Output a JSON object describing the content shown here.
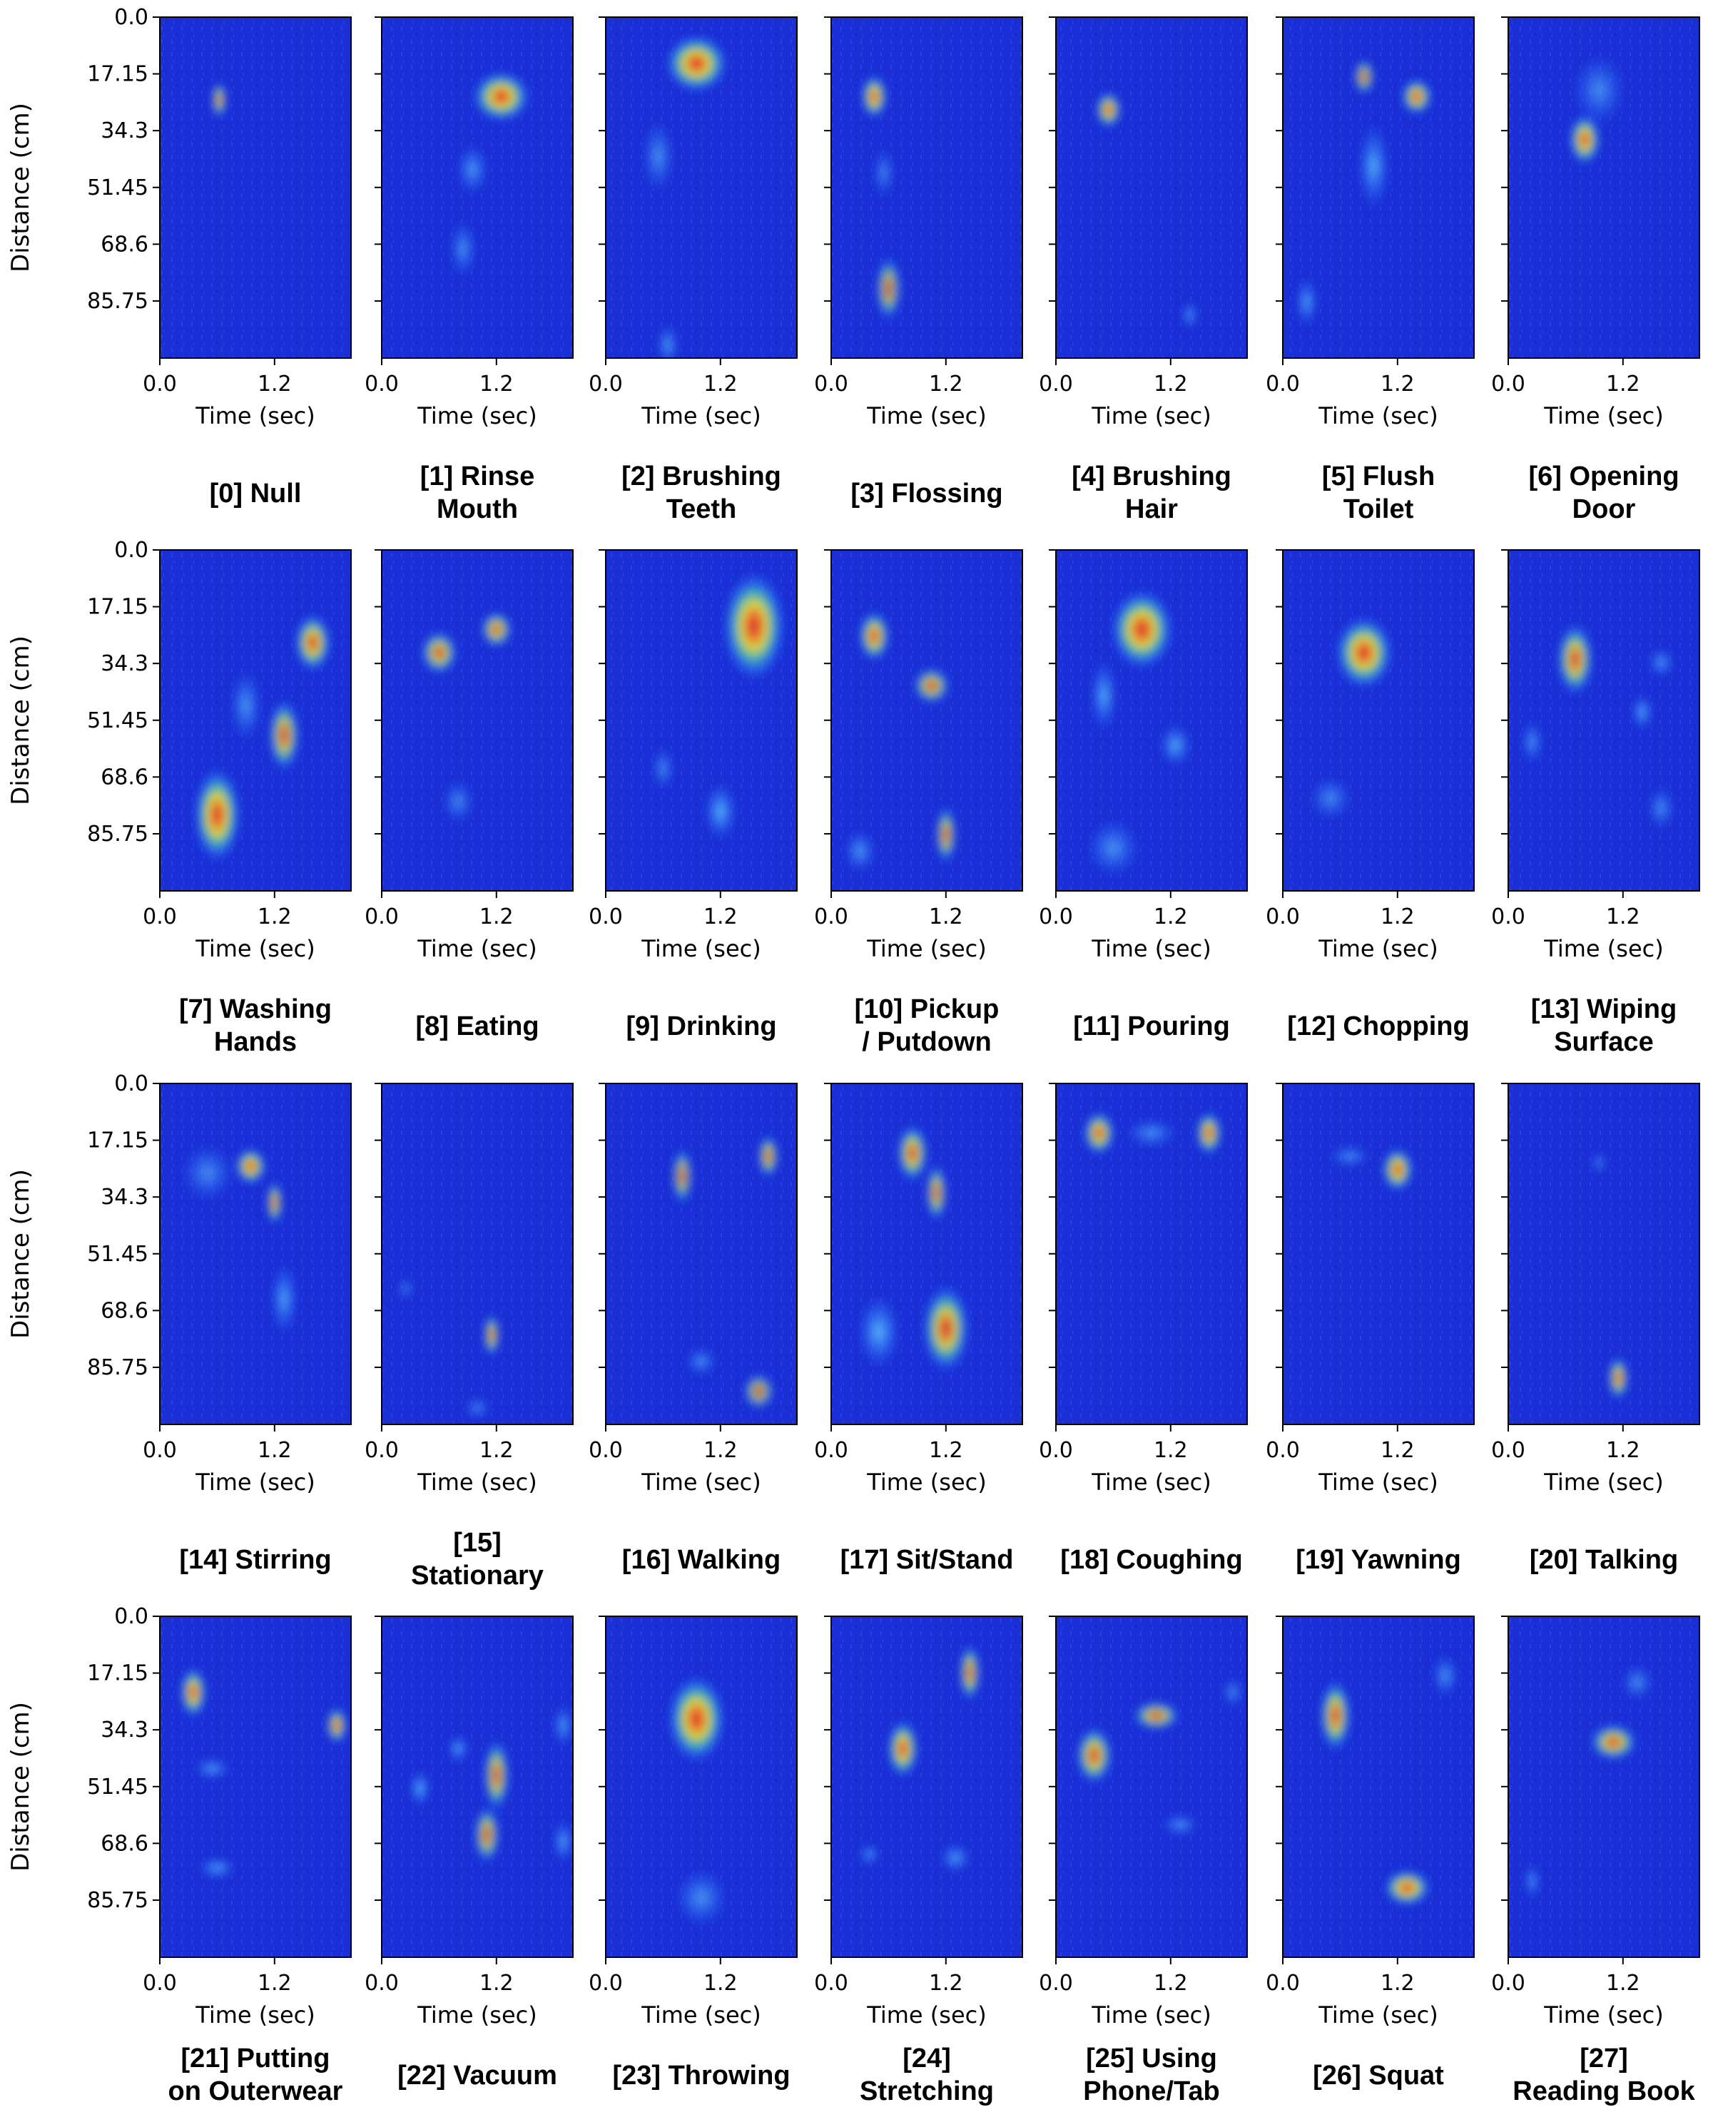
{
  "chart_data": {
    "type": "heatmap",
    "layout": "4 rows x 7 columns of small-multiple heatmaps",
    "colormap": "jet overlay (blue low, red high)",
    "ylabel": "Distance (cm)",
    "xlabel": "Time (sec)",
    "yticks": [
      "0.0",
      "17.15",
      "34.3",
      "51.45",
      "68.6",
      "85.75"
    ],
    "ytick_values": [
      0.0,
      17.15,
      34.3,
      51.45,
      68.6,
      85.75
    ],
    "xticks": [
      "0.0",
      "1.2"
    ],
    "xtick_values": [
      0.0,
      1.2
    ],
    "xlim": [
      0,
      2.0
    ],
    "ylim": [
      0,
      103
    ],
    "panels": [
      {
        "label": "[0] Null",
        "hotspots": [
          {
            "t": 0.62,
            "d": 25,
            "w": 0.12,
            "h": 5,
            "level": 0.95
          }
        ]
      },
      {
        "label": "[1] Rinse Mouth",
        "hotspots": [
          {
            "t": 1.25,
            "d": 24,
            "w": 0.55,
            "h": 7,
            "level": 1.0
          },
          {
            "t": 0.95,
            "d": 46,
            "w": 0.3,
            "h": 7,
            "level": 0.35
          },
          {
            "t": 0.85,
            "d": 70,
            "w": 0.25,
            "h": 8,
            "level": 0.3
          }
        ]
      },
      {
        "label": "[2] Brushing Teeth",
        "hotspots": [
          {
            "t": 0.95,
            "d": 14,
            "w": 0.6,
            "h": 8,
            "level": 1.0
          },
          {
            "t": 0.55,
            "d": 42,
            "w": 0.3,
            "h": 10,
            "level": 0.3
          },
          {
            "t": 0.65,
            "d": 99,
            "w": 0.2,
            "h": 6,
            "level": 0.4
          }
        ]
      },
      {
        "label": "[3] Flossing",
        "hotspots": [
          {
            "t": 0.45,
            "d": 24,
            "w": 0.25,
            "h": 6,
            "level": 1.0
          },
          {
            "t": 0.6,
            "d": 82,
            "w": 0.25,
            "h": 9,
            "level": 0.6
          },
          {
            "t": 0.55,
            "d": 47,
            "w": 0.2,
            "h": 7,
            "level": 0.25
          }
        ]
      },
      {
        "label": "[4] Brushing Hair",
        "hotspots": [
          {
            "t": 0.55,
            "d": 28,
            "w": 0.25,
            "h": 5,
            "level": 0.95
          },
          {
            "t": 1.4,
            "d": 90,
            "w": 0.15,
            "h": 4,
            "level": 0.4
          }
        ]
      },
      {
        "label": "[5] Flush Toilet",
        "hotspots": [
          {
            "t": 0.85,
            "d": 18,
            "w": 0.2,
            "h": 5,
            "level": 0.7
          },
          {
            "t": 1.4,
            "d": 24,
            "w": 0.3,
            "h": 5,
            "level": 0.95
          },
          {
            "t": 0.95,
            "d": 45,
            "w": 0.3,
            "h": 12,
            "level": 0.5
          },
          {
            "t": 0.25,
            "d": 86,
            "w": 0.2,
            "h": 7,
            "level": 0.45
          }
        ]
      },
      {
        "label": "[6] Opening Door",
        "hotspots": [
          {
            "t": 0.8,
            "d": 37,
            "w": 0.3,
            "h": 7,
            "level": 1.0
          },
          {
            "t": 0.95,
            "d": 22,
            "w": 0.5,
            "h": 10,
            "level": 0.25
          }
        ]
      },
      {
        "label": "[7] Washing Hands",
        "hotspots": [
          {
            "t": 1.6,
            "d": 28,
            "w": 0.35,
            "h": 8,
            "level": 0.95
          },
          {
            "t": 1.3,
            "d": 56,
            "w": 0.3,
            "h": 10,
            "level": 0.8
          },
          {
            "t": 0.6,
            "d": 80,
            "w": 0.45,
            "h": 13,
            "level": 1.0
          },
          {
            "t": 0.9,
            "d": 47,
            "w": 0.3,
            "h": 10,
            "level": 0.35
          }
        ]
      },
      {
        "label": "[8] Eating",
        "hotspots": [
          {
            "t": 1.2,
            "d": 24,
            "w": 0.3,
            "h": 5,
            "level": 0.9
          },
          {
            "t": 0.6,
            "d": 31,
            "w": 0.35,
            "h": 6,
            "level": 0.85
          },
          {
            "t": 0.8,
            "d": 76,
            "w": 0.3,
            "h": 6,
            "level": 0.25
          }
        ]
      },
      {
        "label": "[9] Drinking",
        "hotspots": [
          {
            "t": 1.55,
            "d": 23,
            "w": 0.6,
            "h": 15,
            "level": 1.0
          },
          {
            "t": 1.2,
            "d": 79,
            "w": 0.3,
            "h": 8,
            "level": 0.55
          },
          {
            "t": 0.6,
            "d": 66,
            "w": 0.2,
            "h": 6,
            "level": 0.3
          }
        ]
      },
      {
        "label": "[10] Pickup / Putdown",
        "hotspots": [
          {
            "t": 0.45,
            "d": 26,
            "w": 0.3,
            "h": 7,
            "level": 0.95
          },
          {
            "t": 1.05,
            "d": 41,
            "w": 0.35,
            "h": 5,
            "level": 0.8
          },
          {
            "t": 1.2,
            "d": 86,
            "w": 0.2,
            "h": 8,
            "level": 0.75
          },
          {
            "t": 0.3,
            "d": 91,
            "w": 0.3,
            "h": 6,
            "level": 0.35
          }
        ]
      },
      {
        "label": "[11] Pouring",
        "hotspots": [
          {
            "t": 0.9,
            "d": 24,
            "w": 0.6,
            "h": 11,
            "level": 1.0
          },
          {
            "t": 0.5,
            "d": 44,
            "w": 0.25,
            "h": 10,
            "level": 0.5
          },
          {
            "t": 1.25,
            "d": 59,
            "w": 0.3,
            "h": 6,
            "level": 0.5
          },
          {
            "t": 0.6,
            "d": 90,
            "w": 0.5,
            "h": 8,
            "level": 0.3
          }
        ]
      },
      {
        "label": "[12] Chopping",
        "hotspots": [
          {
            "t": 0.85,
            "d": 31,
            "w": 0.55,
            "h": 10,
            "level": 1.0
          },
          {
            "t": 0.5,
            "d": 75,
            "w": 0.4,
            "h": 6,
            "level": 0.25
          }
        ]
      },
      {
        "label": "[13] Wiping Surface",
        "hotspots": [
          {
            "t": 0.7,
            "d": 33,
            "w": 0.35,
            "h": 10,
            "level": 0.9
          },
          {
            "t": 1.4,
            "d": 49,
            "w": 0.2,
            "h": 5,
            "level": 0.5
          },
          {
            "t": 1.6,
            "d": 34,
            "w": 0.25,
            "h": 4,
            "level": 0.35
          },
          {
            "t": 0.25,
            "d": 58,
            "w": 0.2,
            "h": 6,
            "level": 0.35
          },
          {
            "t": 1.6,
            "d": 78,
            "w": 0.25,
            "h": 6,
            "level": 0.3
          }
        ]
      },
      {
        "label": "[14] Stirring",
        "hotspots": [
          {
            "t": 0.95,
            "d": 25,
            "w": 0.3,
            "h": 5,
            "level": 1.0
          },
          {
            "t": 1.2,
            "d": 36,
            "w": 0.15,
            "h": 6,
            "level": 0.9
          },
          {
            "t": 1.3,
            "d": 65,
            "w": 0.25,
            "h": 10,
            "level": 0.45
          },
          {
            "t": 0.5,
            "d": 27,
            "w": 0.5,
            "h": 8,
            "level": 0.25
          }
        ]
      },
      {
        "label": "[15] Stationary",
        "hotspots": [
          {
            "t": 1.15,
            "d": 76,
            "w": 0.15,
            "h": 6,
            "level": 0.9
          },
          {
            "t": 0.25,
            "d": 62,
            "w": 0.1,
            "h": 3,
            "level": 0.3
          },
          {
            "t": 1.0,
            "d": 98,
            "w": 0.25,
            "h": 3,
            "level": 0.25
          }
        ]
      },
      {
        "label": "[16] Walking",
        "hotspots": [
          {
            "t": 0.8,
            "d": 28,
            "w": 0.2,
            "h": 8,
            "level": 0.65
          },
          {
            "t": 1.7,
            "d": 22,
            "w": 0.2,
            "h": 6,
            "level": 0.8
          },
          {
            "t": 1.6,
            "d": 93,
            "w": 0.3,
            "h": 5,
            "level": 0.6
          },
          {
            "t": 1.0,
            "d": 84,
            "w": 0.3,
            "h": 4,
            "level": 0.3
          }
        ]
      },
      {
        "label": "[17] Sit/Stand",
        "hotspots": [
          {
            "t": 0.85,
            "d": 21,
            "w": 0.3,
            "h": 8,
            "level": 0.9
          },
          {
            "t": 1.1,
            "d": 33,
            "w": 0.2,
            "h": 8,
            "level": 0.8
          },
          {
            "t": 1.2,
            "d": 74,
            "w": 0.45,
            "h": 12,
            "level": 0.9
          },
          {
            "t": 0.5,
            "d": 75,
            "w": 0.4,
            "h": 10,
            "level": 0.55
          }
        ]
      },
      {
        "label": "[18] Coughing",
        "hotspots": [
          {
            "t": 0.45,
            "d": 15,
            "w": 0.3,
            "h": 6,
            "level": 0.95
          },
          {
            "t": 1.6,
            "d": 15,
            "w": 0.25,
            "h": 6,
            "level": 0.95
          },
          {
            "t": 1.0,
            "d": 15,
            "w": 0.5,
            "h": 4,
            "level": 0.3
          }
        ]
      },
      {
        "label": "[19] Yawning",
        "hotspots": [
          {
            "t": 1.2,
            "d": 26,
            "w": 0.3,
            "h": 6,
            "level": 1.0
          },
          {
            "t": 0.7,
            "d": 22,
            "w": 0.4,
            "h": 3,
            "level": 0.3
          }
        ]
      },
      {
        "label": "[20] Talking",
        "hotspots": [
          {
            "t": 1.15,
            "d": 89,
            "w": 0.2,
            "h": 6,
            "level": 0.9
          },
          {
            "t": 0.95,
            "d": 24,
            "w": 0.1,
            "h": 3,
            "level": 0.3
          }
        ]
      },
      {
        "label": "[21] Putting on Outerwear",
        "hotspots": [
          {
            "t": 0.35,
            "d": 23,
            "w": 0.25,
            "h": 7,
            "level": 0.95
          },
          {
            "t": 1.85,
            "d": 33,
            "w": 0.2,
            "h": 5,
            "level": 0.9
          },
          {
            "t": 0.55,
            "d": 46,
            "w": 0.35,
            "h": 3,
            "level": 0.4
          },
          {
            "t": 0.6,
            "d": 76,
            "w": 0.35,
            "h": 3,
            "level": 0.45
          }
        ]
      },
      {
        "label": "[22] Vacuum",
        "hotspots": [
          {
            "t": 1.2,
            "d": 48,
            "w": 0.25,
            "h": 10,
            "level": 0.8
          },
          {
            "t": 1.1,
            "d": 66,
            "w": 0.25,
            "h": 8,
            "level": 0.75
          },
          {
            "t": 0.4,
            "d": 52,
            "w": 0.2,
            "h": 5,
            "level": 0.55
          },
          {
            "t": 0.8,
            "d": 40,
            "w": 0.2,
            "h": 4,
            "level": 0.45
          },
          {
            "t": 1.9,
            "d": 68,
            "w": 0.2,
            "h": 6,
            "level": 0.45
          },
          {
            "t": 1.9,
            "d": 33,
            "w": 0.2,
            "h": 6,
            "level": 0.4
          }
        ]
      },
      {
        "label": "[23] Throwing",
        "hotspots": [
          {
            "t": 0.95,
            "d": 31,
            "w": 0.55,
            "h": 12,
            "level": 1.0
          },
          {
            "t": 1.0,
            "d": 85,
            "w": 0.5,
            "h": 8,
            "level": 0.3
          }
        ]
      },
      {
        "label": "[24] Stretching",
        "hotspots": [
          {
            "t": 0.75,
            "d": 40,
            "w": 0.3,
            "h": 8,
            "level": 0.95
          },
          {
            "t": 1.45,
            "d": 17,
            "w": 0.2,
            "h": 8,
            "level": 0.85
          },
          {
            "t": 1.3,
            "d": 73,
            "w": 0.3,
            "h": 4,
            "level": 0.4
          },
          {
            "t": 0.4,
            "d": 72,
            "w": 0.2,
            "h": 3,
            "level": 0.35
          }
        ]
      },
      {
        "label": "[25] Using Phone/Tab",
        "hotspots": [
          {
            "t": 0.4,
            "d": 42,
            "w": 0.35,
            "h": 8,
            "level": 0.9
          },
          {
            "t": 1.05,
            "d": 30,
            "w": 0.45,
            "h": 4,
            "level": 0.8
          },
          {
            "t": 1.3,
            "d": 63,
            "w": 0.35,
            "h": 3,
            "level": 0.35
          },
          {
            "t": 1.85,
            "d": 23,
            "w": 0.2,
            "h": 4,
            "level": 0.3
          }
        ]
      },
      {
        "label": "[26] Squat",
        "hotspots": [
          {
            "t": 0.55,
            "d": 30,
            "w": 0.3,
            "h": 10,
            "level": 0.9
          },
          {
            "t": 1.3,
            "d": 82,
            "w": 0.45,
            "h": 5,
            "level": 1.0
          },
          {
            "t": 1.7,
            "d": 18,
            "w": 0.25,
            "h": 6,
            "level": 0.35
          }
        ]
      },
      {
        "label": "[27] Reading Book",
        "hotspots": [
          {
            "t": 1.1,
            "d": 38,
            "w": 0.45,
            "h": 5,
            "level": 0.9
          },
          {
            "t": 0.25,
            "d": 80,
            "w": 0.1,
            "h": 5,
            "level": 0.45
          },
          {
            "t": 1.35,
            "d": 20,
            "w": 0.3,
            "h": 5,
            "level": 0.3
          }
        ]
      }
    ]
  }
}
